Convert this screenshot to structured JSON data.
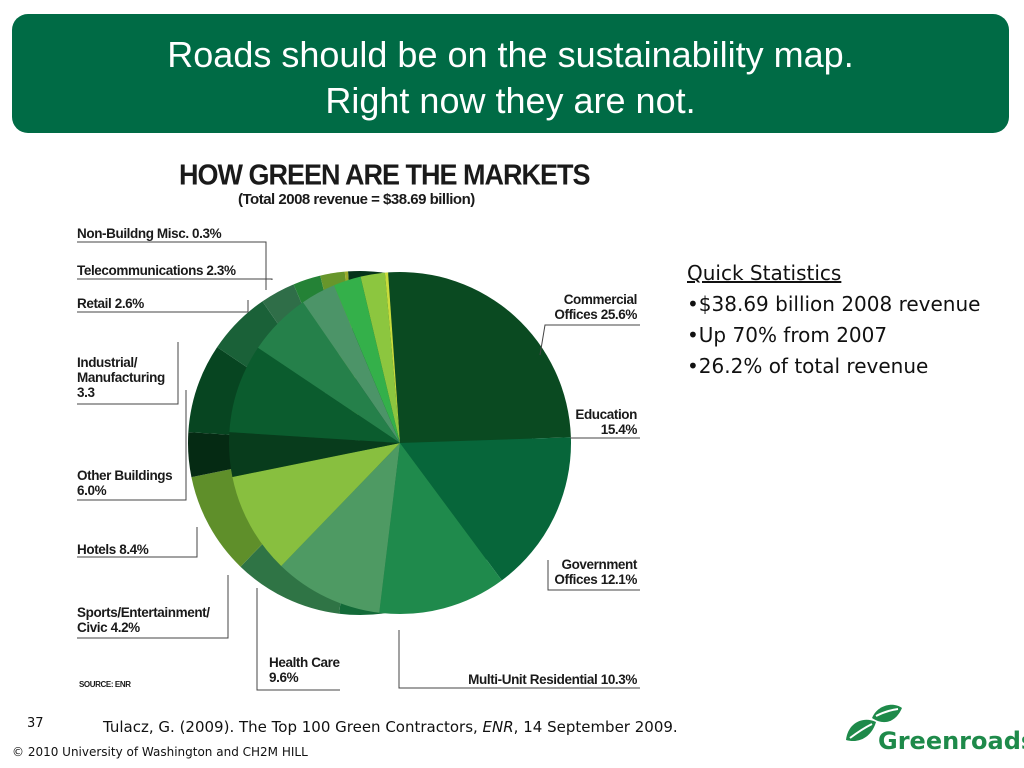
{
  "slide": {
    "title_line1": "Roads should be on the sustainability map.",
    "title_line2": "Right now they are not.",
    "slide_number": "37",
    "citation_prefix": "Tulacz, G. (2009). The Top 100 Green Contractors, ",
    "citation_journal": "ENR",
    "citation_suffix": ", 14 September 2009.",
    "copyright": "© 2010 University of Washington and CH2M HILL",
    "logo_text": "Greenroads"
  },
  "quick_stats": {
    "heading": "Quick Statistics",
    "items": [
      "•$38.69 billion 2008 revenue",
      "•Up 70% from 2007",
      "•26.2% of total revenue"
    ]
  },
  "chart_data": {
    "type": "pie",
    "title": "HOW GREEN ARE THE MARKETS",
    "subtitle": "(Total 2008 revenue = $38.69 billion)",
    "source": "SOURCE: ENR",
    "slices": [
      {
        "label": "Commercial Offices 25.6%",
        "value": 25.6,
        "color": "#0a4a21",
        "side": "#05331a"
      },
      {
        "label": "Education 15.4%",
        "value": 15.4,
        "color": "#07663a",
        "side": "#044d2a"
      },
      {
        "label": "Government Offices 12.1%",
        "value": 12.1,
        "color": "#1f8a4c",
        "side": "#136a38"
      },
      {
        "label": "Multi-Unit Residential 10.3%",
        "value": 10.3,
        "color": "#4e9a63",
        "side": "#2f7445"
      },
      {
        "label": "Health Care 9.6%",
        "value": 9.6,
        "color": "#88bf3f",
        "side": "#5f8f2a"
      },
      {
        "label": "Sports/Entertainment/ Civic 4.2%",
        "value": 4.2,
        "color": "#083c1c",
        "side": "#052a13"
      },
      {
        "label": "Hotels 8.4%",
        "value": 8.4,
        "color": "#0b5c2e",
        "side": "#074521"
      },
      {
        "label": "Other Buildings 6.0%",
        "value": 6.0,
        "color": "#25804a",
        "side": "#1a6138"
      },
      {
        "label": "Industrial/ Manufacturing 3.3",
        "value": 3.3,
        "color": "#4c9468",
        "side": "#2f6e48"
      },
      {
        "label": "Retail 2.6%",
        "value": 2.6,
        "color": "#34b04a",
        "side": "#248236"
      },
      {
        "label": "Telecommunications 2.3%",
        "value": 2.3,
        "color": "#8cc63f",
        "side": "#67962b"
      },
      {
        "label": "Non-Buildng Misc. 0.3%",
        "value": 0.3,
        "color": "#c8dc3c",
        "side": "#9bab2a"
      }
    ],
    "labels": {
      "commercial": [
        "Commercial",
        "Offices 25.6%"
      ],
      "education": [
        "Education",
        "15.4%"
      ],
      "government": [
        "Government",
        "Offices 12.1%"
      ],
      "multi": [
        "Multi-Unit Residential 10.3%"
      ],
      "health": [
        "Health Care",
        "9.6%"
      ],
      "sports": [
        "Sports/Entertainment/",
        "Civic 4.2%"
      ],
      "hotels": [
        "Hotels 8.4%"
      ],
      "other": [
        "Other Buildings",
        "6.0%"
      ],
      "industrial": [
        "Industrial/",
        "Manufacturing",
        "3.3"
      ],
      "retail": [
        "Retail 2.6%"
      ],
      "telecom": [
        "Telecommunications 2.3%"
      ],
      "nonbuilding": [
        "Non-Buildng Misc. 0.3%"
      ]
    }
  }
}
